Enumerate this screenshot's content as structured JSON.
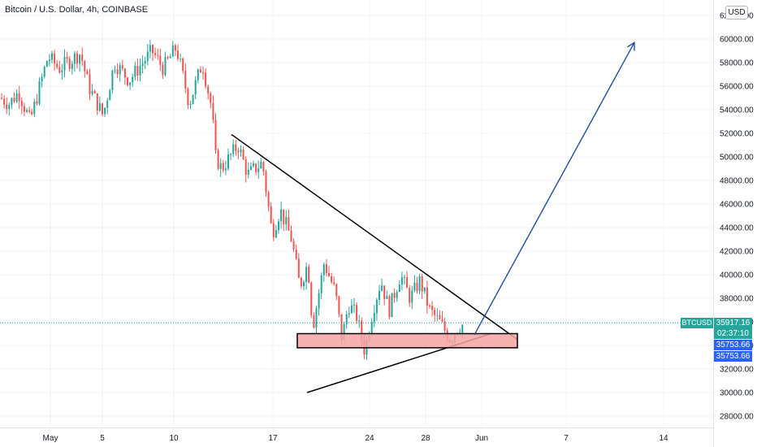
{
  "header": {
    "title": "Bitcoin / U.S. Dollar, 4h, COINBASE",
    "currency_button": "USD"
  },
  "colors": {
    "up": "#26a69a",
    "down": "#ef5350",
    "price_line": "#26a69a",
    "support_zone": "#f5a3a3",
    "arrow": "#1f4e9a",
    "tag_blue": "#2962ff"
  },
  "price_tags": {
    "symbol": "BTCUSD",
    "last_price": "35917.16",
    "countdown": "02:37:10",
    "tag2": "35753.66",
    "tag3": "35753.66"
  },
  "chart_data": {
    "type": "candlestick",
    "title": "Bitcoin / U.S. Dollar, 4h, COINBASE",
    "x_tick_labels": [
      "May",
      "5",
      "10",
      "17",
      "24",
      "28",
      "Jun",
      "7",
      "14"
    ],
    "y_tick_labels": [
      "28000.00",
      "30000.00",
      "32000.00",
      "34000.00",
      "36000.00",
      "38000.00",
      "40000.00",
      "42000.00",
      "44000.00",
      "46000.00",
      "48000.00",
      "50000.00",
      "52000.00",
      "54000.00",
      "56000.00",
      "58000.00",
      "60000.00",
      "62000.00"
    ],
    "ylim": [
      27000,
      63300
    ],
    "last_price": 35917.16,
    "anchors": [
      {
        "x": 0,
        "y": 55000
      },
      {
        "x": 10,
        "y": 54500
      },
      {
        "x": 22,
        "y": 55500
      },
      {
        "x": 36,
        "y": 53000
      },
      {
        "x": 46,
        "y": 55500
      },
      {
        "x": 58,
        "y": 58500
      },
      {
        "x": 72,
        "y": 57500
      },
      {
        "x": 82,
        "y": 58000
      },
      {
        "x": 98,
        "y": 58800
      },
      {
        "x": 108,
        "y": 56000
      },
      {
        "x": 126,
        "y": 53500
      },
      {
        "x": 140,
        "y": 58000
      },
      {
        "x": 158,
        "y": 56500
      },
      {
        "x": 186,
        "y": 59000
      },
      {
        "x": 200,
        "y": 57500
      },
      {
        "x": 216,
        "y": 59300
      },
      {
        "x": 232,
        "y": 54500
      },
      {
        "x": 248,
        "y": 58000
      },
      {
        "x": 260,
        "y": 54000
      },
      {
        "x": 264,
        "y": 50000
      },
      {
        "x": 272,
        "y": 49000
      },
      {
        "x": 292,
        "y": 51000
      },
      {
        "x": 304,
        "y": 48500
      },
      {
        "x": 322,
        "y": 49500
      },
      {
        "x": 334,
        "y": 43500
      },
      {
        "x": 344,
        "y": 45500
      },
      {
        "x": 358,
        "y": 43000
      },
      {
        "x": 368,
        "y": 39000
      },
      {
        "x": 378,
        "y": 41000
      },
      {
        "x": 384,
        "y": 35500
      },
      {
        "x": 398,
        "y": 41000
      },
      {
        "x": 412,
        "y": 38500
      },
      {
        "x": 420,
        "y": 34500
      },
      {
        "x": 428,
        "y": 37500
      },
      {
        "x": 438,
        "y": 36500
      },
      {
        "x": 448,
        "y": 33500
      },
      {
        "x": 458,
        "y": 37000
      },
      {
        "x": 468,
        "y": 39500
      },
      {
        "x": 478,
        "y": 37000
      },
      {
        "x": 492,
        "y": 40000
      },
      {
        "x": 504,
        "y": 38000
      },
      {
        "x": 516,
        "y": 39500
      },
      {
        "x": 528,
        "y": 37000
      },
      {
        "x": 540,
        "y": 36000
      },
      {
        "x": 554,
        "y": 34500
      },
      {
        "x": 562,
        "y": 35500
      },
      {
        "x": 570,
        "y": 35800
      }
    ],
    "annotations": [
      {
        "type": "trendline",
        "name": "descending-resistance",
        "from": {
          "x": 285,
          "y": 51900
        },
        "to": {
          "x": 637,
          "y": 34500
        }
      },
      {
        "type": "trendline",
        "name": "ascending-support",
        "from": {
          "x": 378,
          "y": 30000
        },
        "to": {
          "x": 605,
          "y": 35000
        }
      },
      {
        "type": "rectangle",
        "name": "support-zone",
        "from": {
          "x": 366,
          "y": 35000
        },
        "to": {
          "x": 637,
          "y": 33800
        }
      },
      {
        "type": "arrow",
        "name": "breakout-arrow",
        "from": {
          "x": 584,
          "y": 34900
        },
        "to": {
          "x": 781,
          "y": 59700
        }
      }
    ]
  }
}
